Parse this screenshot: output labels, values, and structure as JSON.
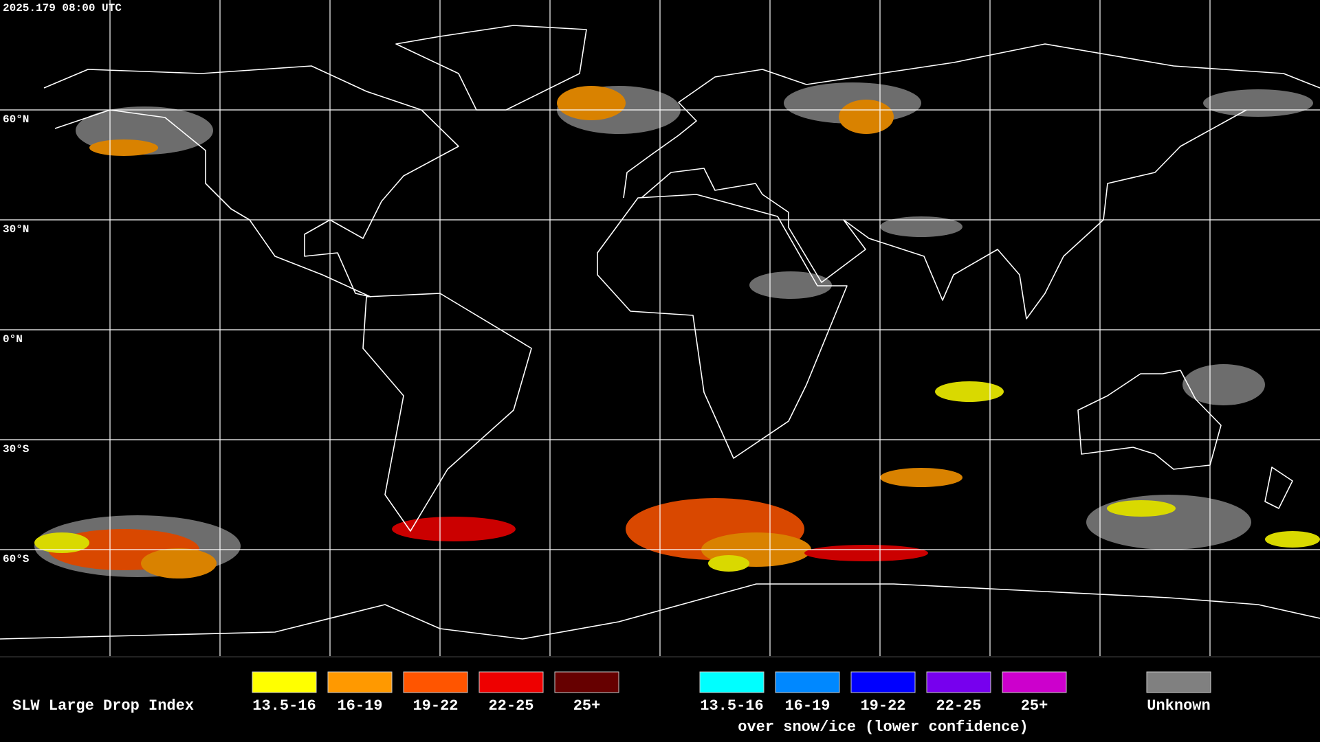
{
  "header": {
    "timestamp": "2025.179 08:00 UTC"
  },
  "map": {
    "latitude_labels": [
      "60°N",
      "30°N",
      "0°N",
      "30°S",
      "60°S"
    ]
  },
  "legend": {
    "title": "SLW Large Drop Index",
    "groups": [
      {
        "items": [
          {
            "label": "13.5-16",
            "color": "#ffff00"
          },
          {
            "label": "16-19",
            "color": "#ff9900"
          },
          {
            "label": "19-22",
            "color": "#ff5500"
          },
          {
            "label": "22-25",
            "color": "#ee0000"
          },
          {
            "label": "25+",
            "color": "#660000"
          }
        ]
      },
      {
        "caption": "over snow/ice (lower confidence)",
        "items": [
          {
            "label": "13.5-16",
            "color": "#00ffff"
          },
          {
            "label": "16-19",
            "color": "#0088ff"
          },
          {
            "label": "19-22",
            "color": "#0000ff"
          },
          {
            "label": "22-25",
            "color": "#7700ee"
          },
          {
            "label": "25+",
            "color": "#cc00cc"
          }
        ]
      },
      {
        "items": [
          {
            "label": "Unknown",
            "color": "#808080"
          }
        ]
      }
    ]
  }
}
